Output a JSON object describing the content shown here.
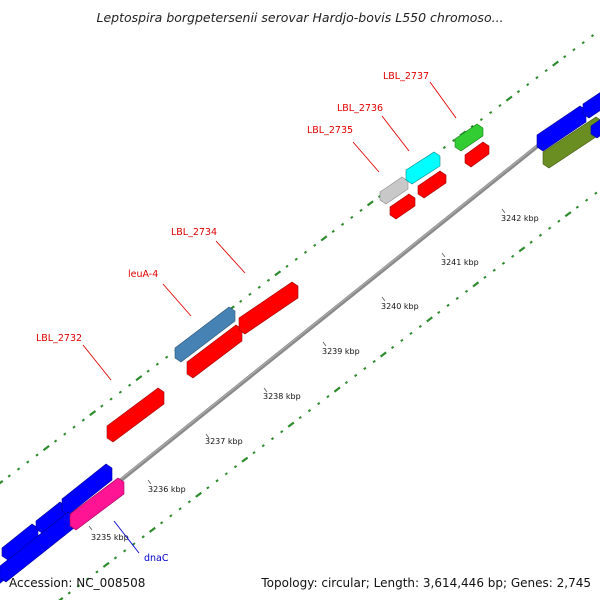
{
  "title": "Leptospira borgpetersenii serovar Hardjo-bovis L550 chromoso...",
  "footer": {
    "accession": "Accession: NC_008508",
    "topology": "Topology: circular; Length: 3,614,446 bp; Genes: 2,745"
  },
  "colors": {
    "backbone": "#808080",
    "gc_track": "#2e8b2e",
    "red": "#ff0000",
    "blue": "#0000ff",
    "steelblue": "#4682b4",
    "cyan": "#00ffff",
    "green": "#32cd32",
    "olive": "#6b8e23",
    "magenta": "#ff1493",
    "gray": "#c8c8c8",
    "label_red": "#e00000",
    "label_blue": "#0000cc"
  },
  "ticks": [
    {
      "label": "3235 kbp"
    },
    {
      "label": "3236 kbp"
    },
    {
      "label": "3237 kbp"
    },
    {
      "label": "3238 kbp"
    },
    {
      "label": "3239 kbp"
    },
    {
      "label": "3240 kbp"
    },
    {
      "label": "3241 kbp"
    },
    {
      "label": "3242 kbp"
    }
  ],
  "genes": [
    {
      "label": "LBL_2732",
      "color": "red"
    },
    {
      "label": "leuA-4",
      "color": "steelblue"
    },
    {
      "label": "LBL_2734",
      "color": "red"
    },
    {
      "label": "LBL_2735",
      "color": "gray"
    },
    {
      "label": "LBL_2736",
      "color": "cyan"
    },
    {
      "label": "LBL_2737",
      "color": "green"
    },
    {
      "label": "dnaC",
      "color": "magenta"
    }
  ]
}
